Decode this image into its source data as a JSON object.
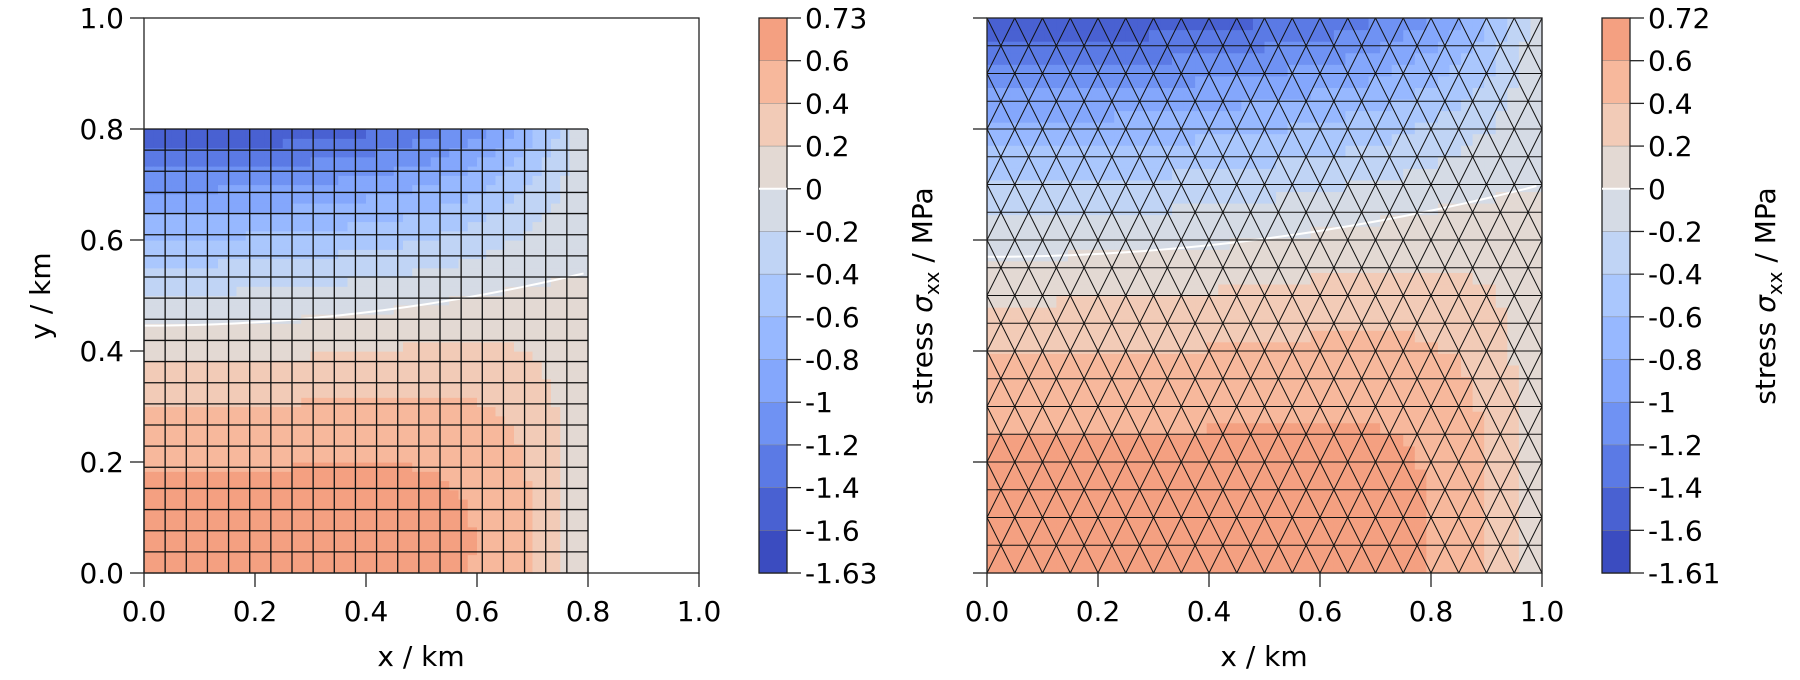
{
  "chart_data": [
    {
      "type": "heatmap",
      "subtype": "filled-contour on quadrilateral mesh",
      "xlabel": "x / km",
      "ylabel": "y / km",
      "xlim": [
        0.0,
        1.0
      ],
      "ylim": [
        0.0,
        1.0
      ],
      "domain_extent": {
        "x": [
          0.0,
          0.8
        ],
        "y": [
          0.0,
          0.8
        ]
      },
      "mesh_cells": [
        21,
        21
      ],
      "xticks": [
        "0.0",
        "0.2",
        "0.4",
        "0.6",
        "0.8",
        "1.0"
      ],
      "yticks": [
        "0.0",
        "0.2",
        "0.4",
        "0.6",
        "0.8",
        "1.0"
      ],
      "colorbar": {
        "label_parts": [
          "stress ",
          "σ",
          "xx",
          " / MPa"
        ],
        "min": -1.63,
        "max": 0.73,
        "ticks": [
          "0.73",
          "0.6",
          "0.4",
          "0.2",
          "0",
          "-0.2",
          "-0.4",
          "-0.6",
          "-0.8",
          "-1",
          "-1.2",
          "-1.4",
          "-1.6",
          "-1.63"
        ],
        "levels": [
          0.73,
          0.6,
          0.4,
          0.2,
          0,
          -0.2,
          -0.4,
          -0.6,
          -0.8,
          -1,
          -1.2,
          -1.4,
          -1.6,
          -1.63
        ]
      },
      "zero_contour_color": "#ffffff"
    },
    {
      "type": "heatmap",
      "subtype": "filled-contour on triangular mesh",
      "xlabel": "x / km",
      "ylabel": "",
      "xlim": [
        0.0,
        1.0
      ],
      "ylim": [
        0.0,
        1.0
      ],
      "domain_extent": {
        "x": [
          0.0,
          1.0
        ],
        "y": [
          0.0,
          1.0
        ]
      },
      "xticks": [
        "0.0",
        "0.2",
        "0.4",
        "0.6",
        "0.8",
        "1.0"
      ],
      "yticks": [],
      "colorbar": {
        "label_parts": [
          "stress ",
          "σ",
          "xx",
          " / MPa"
        ],
        "min": -1.61,
        "max": 0.72,
        "ticks": [
          "0.72",
          "0.6",
          "0.4",
          "0.2",
          "0",
          "-0.2",
          "-0.4",
          "-0.6",
          "-0.8",
          "-1",
          "-1.2",
          "-1.4",
          "-1.6",
          "-1.61"
        ],
        "levels": [
          0.72,
          0.6,
          0.4,
          0.2,
          0,
          -0.2,
          -0.4,
          -0.6,
          -0.8,
          -1,
          -1.2,
          -1.4,
          -1.6,
          -1.61
        ]
      },
      "zero_contour_color": "#ffffff"
    }
  ],
  "colormap": [
    "#f4a081",
    "#f7b89c",
    "#f2cbb7",
    "#e3d9d3",
    "#d5dbe5",
    "#c0d4f5",
    "#aac7fd",
    "#97b8ff",
    "#84a7fc",
    "#6f92f3",
    "#5b7ae5",
    "#4961d2",
    "#3b4cc0"
  ]
}
